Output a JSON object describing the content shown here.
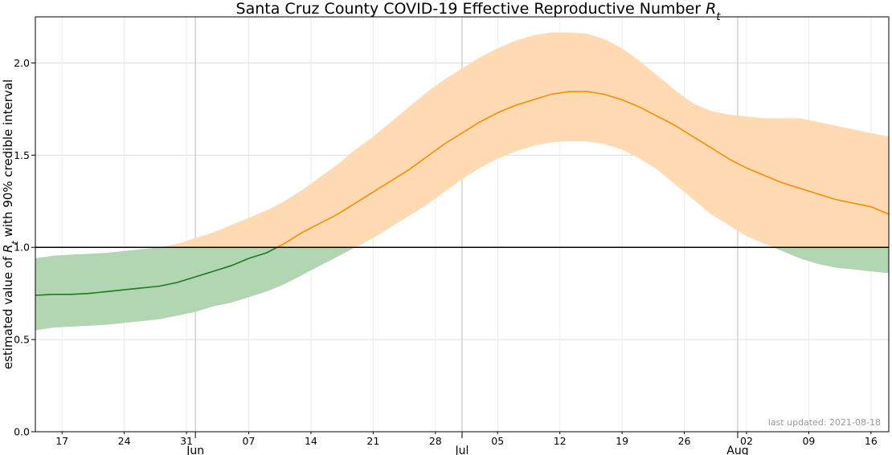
{
  "chart_data": {
    "type": "area",
    "title": "Santa Cruz County COVID-19 Effective Reproductive Number ",
    "title_symbol": "R",
    "title_symbol_sub": "t",
    "ylabel_prefix": "estimated value of ",
    "ylabel_symbol": "R",
    "ylabel_symbol_sub": "t",
    "ylabel_suffix": " with 90% credible interval",
    "xlabel": "",
    "ylim": [
      0.0,
      2.25
    ],
    "xlim": [
      "2021-05-14",
      "2021-08-18"
    ],
    "yticks": [
      0.0,
      0.5,
      1.0,
      1.5,
      2.0
    ],
    "ytick_labels": [
      "0.0",
      "0.5",
      "1.0",
      "1.5",
      "2.0"
    ],
    "xticks_minor": [
      {
        "date": "2021-05-17",
        "label": "17"
      },
      {
        "date": "2021-05-24",
        "label": "24"
      },
      {
        "date": "2021-05-31",
        "label": "31"
      },
      {
        "date": "2021-06-07",
        "label": "07"
      },
      {
        "date": "2021-06-14",
        "label": "14"
      },
      {
        "date": "2021-06-21",
        "label": "21"
      },
      {
        "date": "2021-06-28",
        "label": "28"
      },
      {
        "date": "2021-07-05",
        "label": "05"
      },
      {
        "date": "2021-07-12",
        "label": "12"
      },
      {
        "date": "2021-07-19",
        "label": "19"
      },
      {
        "date": "2021-07-26",
        "label": "26"
      },
      {
        "date": "2021-08-02",
        "label": "02"
      },
      {
        "date": "2021-08-09",
        "label": "09"
      },
      {
        "date": "2021-08-16",
        "label": "16"
      }
    ],
    "xticks_major": [
      {
        "date": "2021-06-01",
        "label": "Jun"
      },
      {
        "date": "2021-07-01",
        "label": "Jul"
      },
      {
        "date": "2021-08-01",
        "label": "Aug"
      }
    ],
    "grid": true,
    "threshold": 1.0,
    "colors": {
      "below": "#1f7a1f",
      "below_band": "#b2d5b2",
      "above": "#ff8c00",
      "above_band": "#ffdab3",
      "threshold": "#000000",
      "grid": "#dddddd"
    },
    "series": [
      {
        "x": [
          "2021-05-14",
          "2021-05-16",
          "2021-05-18",
          "2021-05-20",
          "2021-05-22",
          "2021-05-24",
          "2021-05-26",
          "2021-05-28",
          "2021-05-30",
          "2021-06-01",
          "2021-06-03",
          "2021-06-05",
          "2021-06-07",
          "2021-06-09",
          "2021-06-11",
          "2021-06-13",
          "2021-06-15",
          "2021-06-17",
          "2021-06-19",
          "2021-06-21",
          "2021-06-23",
          "2021-06-25",
          "2021-06-27",
          "2021-06-29",
          "2021-07-01",
          "2021-07-03",
          "2021-07-05",
          "2021-07-07",
          "2021-07-09",
          "2021-07-11",
          "2021-07-13",
          "2021-07-15",
          "2021-07-17",
          "2021-07-19",
          "2021-07-21",
          "2021-07-23",
          "2021-07-25",
          "2021-07-27",
          "2021-07-29",
          "2021-07-31",
          "2021-08-02",
          "2021-08-04",
          "2021-08-06",
          "2021-08-08",
          "2021-08-10",
          "2021-08-12",
          "2021-08-14",
          "2021-08-16",
          "2021-08-18"
        ],
        "rt": [
          0.74,
          0.745,
          0.745,
          0.75,
          0.76,
          0.77,
          0.78,
          0.79,
          0.81,
          0.84,
          0.87,
          0.9,
          0.94,
          0.97,
          1.02,
          1.08,
          1.13,
          1.18,
          1.24,
          1.3,
          1.36,
          1.42,
          1.49,
          1.56,
          1.62,
          1.68,
          1.73,
          1.77,
          1.8,
          1.83,
          1.845,
          1.845,
          1.83,
          1.8,
          1.76,
          1.71,
          1.66,
          1.6,
          1.54,
          1.48,
          1.43,
          1.39,
          1.35,
          1.32,
          1.29,
          1.26,
          1.24,
          1.22,
          1.18
        ],
        "lower": [
          0.55,
          0.565,
          0.57,
          0.575,
          0.58,
          0.59,
          0.6,
          0.61,
          0.63,
          0.65,
          0.68,
          0.7,
          0.73,
          0.76,
          0.8,
          0.85,
          0.9,
          0.95,
          1.0,
          1.05,
          1.11,
          1.17,
          1.23,
          1.3,
          1.37,
          1.43,
          1.48,
          1.52,
          1.55,
          1.57,
          1.575,
          1.575,
          1.56,
          1.53,
          1.48,
          1.42,
          1.34,
          1.26,
          1.18,
          1.12,
          1.06,
          1.02,
          0.98,
          0.94,
          0.91,
          0.89,
          0.88,
          0.87,
          0.86
        ],
        "upper": [
          0.94,
          0.955,
          0.96,
          0.965,
          0.97,
          0.98,
          0.99,
          1.0,
          1.02,
          1.05,
          1.08,
          1.12,
          1.16,
          1.2,
          1.25,
          1.31,
          1.38,
          1.45,
          1.53,
          1.6,
          1.68,
          1.76,
          1.84,
          1.91,
          1.97,
          2.03,
          2.08,
          2.12,
          2.15,
          2.165,
          2.165,
          2.16,
          2.13,
          2.08,
          2.01,
          1.93,
          1.85,
          1.78,
          1.74,
          1.72,
          1.71,
          1.7,
          1.7,
          1.7,
          1.68,
          1.66,
          1.64,
          1.62,
          1.6
        ]
      }
    ],
    "annotation": "last updated: 2021-08-18"
  }
}
